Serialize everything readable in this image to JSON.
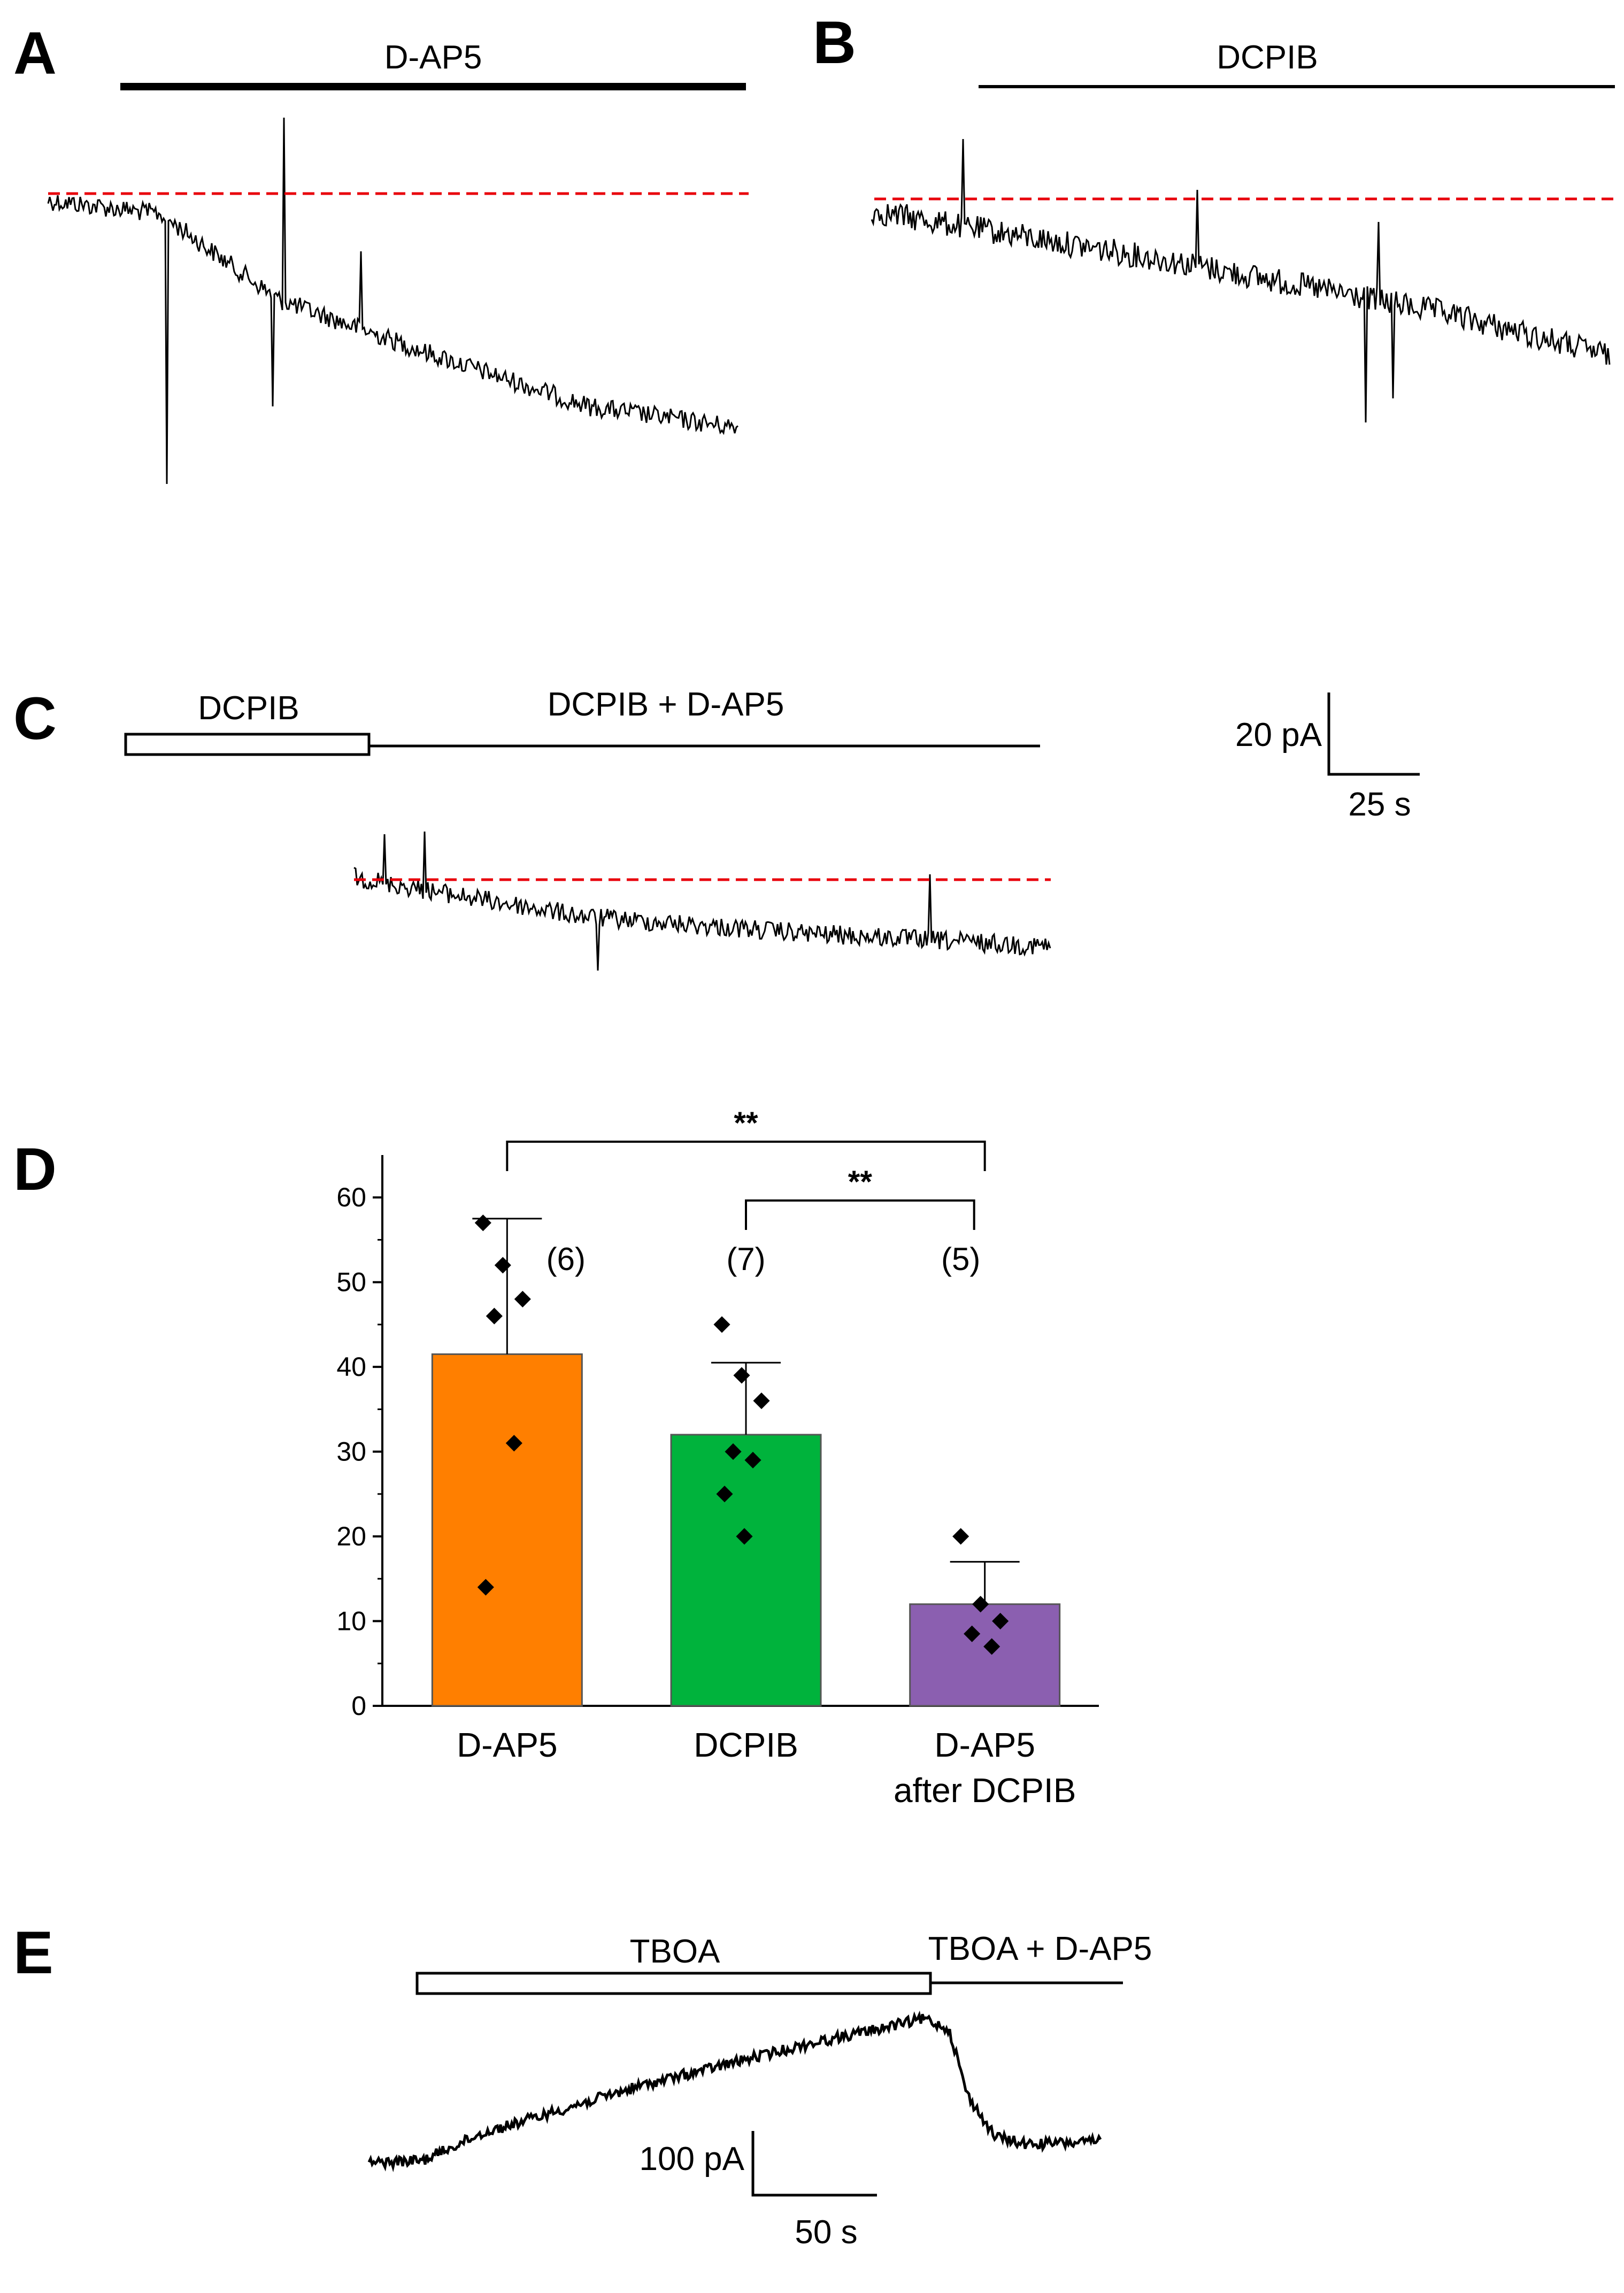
{
  "panels": {
    "A": {
      "letter": "A",
      "drug_label": "D-AP5"
    },
    "B": {
      "letter": "B",
      "drug_label": "DCPIB"
    },
    "C": {
      "letter": "C",
      "pre_label": "DCPIB",
      "combo_label": "DCPIB + D-AP5"
    },
    "D": {
      "letter": "D"
    },
    "E": {
      "letter": "E",
      "pre_label": "TBOA",
      "combo_label": "TBOA + D-AP5"
    }
  },
  "scalebars": {
    "small": {
      "current_label": "20 pA",
      "time_label": "25 s"
    },
    "large": {
      "current_label": "100 pA",
      "time_label": "50 s"
    }
  },
  "chart_data": {
    "type": "bar",
    "title": "",
    "xlabel": "",
    "ylabel": "",
    "ylim": [
      0,
      65
    ],
    "yticks": [
      0,
      10,
      20,
      30,
      40,
      50,
      60
    ],
    "categories": [
      "D-AP5",
      "DCPIB",
      "D-AP5 after DCPIB"
    ],
    "category_lines": [
      [
        "D-AP5"
      ],
      [
        "DCPIB"
      ],
      [
        "D-AP5",
        "after DCPIB"
      ]
    ],
    "values": [
      41.5,
      32,
      12
    ],
    "errors": [
      16,
      8.5,
      5
    ],
    "colors": [
      "#ff7f00",
      "#00b33c",
      "#8b5fb0"
    ],
    "n_labels": [
      "(6)",
      "(7)",
      "(5)"
    ],
    "points": [
      [
        57,
        52,
        48,
        46,
        31,
        14
      ],
      [
        45,
        39,
        36,
        30,
        29,
        25,
        20
      ],
      [
        20,
        12,
        10,
        8.5,
        7
      ]
    ],
    "significance": [
      {
        "from": 0,
        "to": 2,
        "label": "**"
      },
      {
        "from": 1,
        "to": 2,
        "label": "**"
      }
    ]
  },
  "colors": {
    "trace": "#000000",
    "baseline": "#e8000b"
  }
}
